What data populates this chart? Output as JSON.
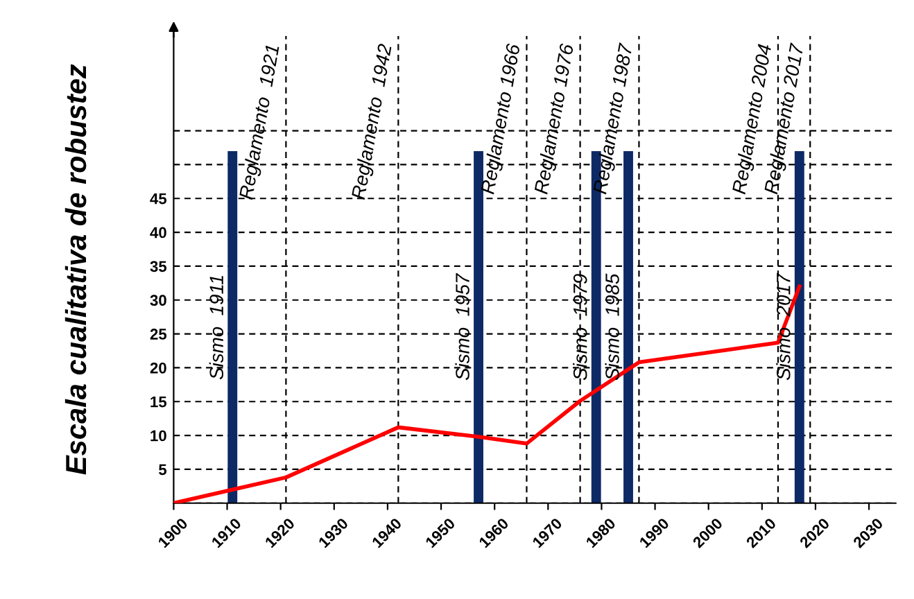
{
  "chart_data": {
    "type": "line",
    "ylabel": "Escala cualitativa de robustez",
    "xlim": [
      1900,
      2035
    ],
    "ylim": [
      0,
      69
    ],
    "xticks": [
      1900,
      1910,
      1920,
      1930,
      1940,
      1950,
      1960,
      1970,
      1980,
      1990,
      2000,
      2010,
      2020,
      2030
    ],
    "yticks": [
      {
        "value": 0,
        "label": null
      },
      5,
      10,
      15,
      20,
      25,
      30,
      35,
      40,
      45,
      {
        "value": 50,
        "label": null
      },
      {
        "value": 55,
        "label": null
      }
    ],
    "grid": "y",
    "marker": "none",
    "line_style": "solid",
    "legend": false,
    "series": [
      {
        "color": "#ff0000",
        "x": [
          1900,
          1911,
          1921,
          1942,
          1957,
          1966,
          1976,
          1987,
          2013,
          2017
        ],
        "values": [
          0,
          2,
          3.8,
          11.2,
          9.8,
          8.8,
          15.1,
          20.8,
          23.7,
          32
        ]
      },
      {
        "type": "bar",
        "color": "#0d2a66",
        "x": [
          1911,
          1957,
          1979,
          1985,
          2017
        ],
        "values": [
          52,
          52,
          52,
          52,
          52
        ],
        "value_labels": [
          "Sismo  1911",
          "Sismo  1957",
          "Sismo  1979",
          "Sismo  1985",
          "Sismo  2017"
        ]
      }
    ],
    "ref_lines": [
      {
        "axis": "x",
        "value": 1921,
        "label": "Reglamento  1921",
        "color": "#000000",
        "line_style": "dashed"
      },
      {
        "axis": "x",
        "value": 1942,
        "label": "Reglamento  1942",
        "color": "#000000",
        "line_style": "dashed"
      },
      {
        "axis": "x",
        "value": 1966,
        "label": "Reglamento 1966",
        "color": "#000000",
        "line_style": "dashed"
      },
      {
        "axis": "x",
        "value": 1976,
        "label": "Reglamento 1976",
        "color": "#000000",
        "line_style": "dashed"
      },
      {
        "axis": "x",
        "value": 1987,
        "label": "Reglamento 1987",
        "color": "#000000",
        "line_style": "dashed"
      },
      {
        "axis": "x",
        "value": 2013,
        "label": "Reglamento 2004",
        "color": "#000000",
        "line_style": "dashed"
      },
      {
        "axis": "x",
        "value": 2019,
        "label": "Reglamento 2017",
        "color": "#000000",
        "line_style": "dashed"
      }
    ]
  }
}
